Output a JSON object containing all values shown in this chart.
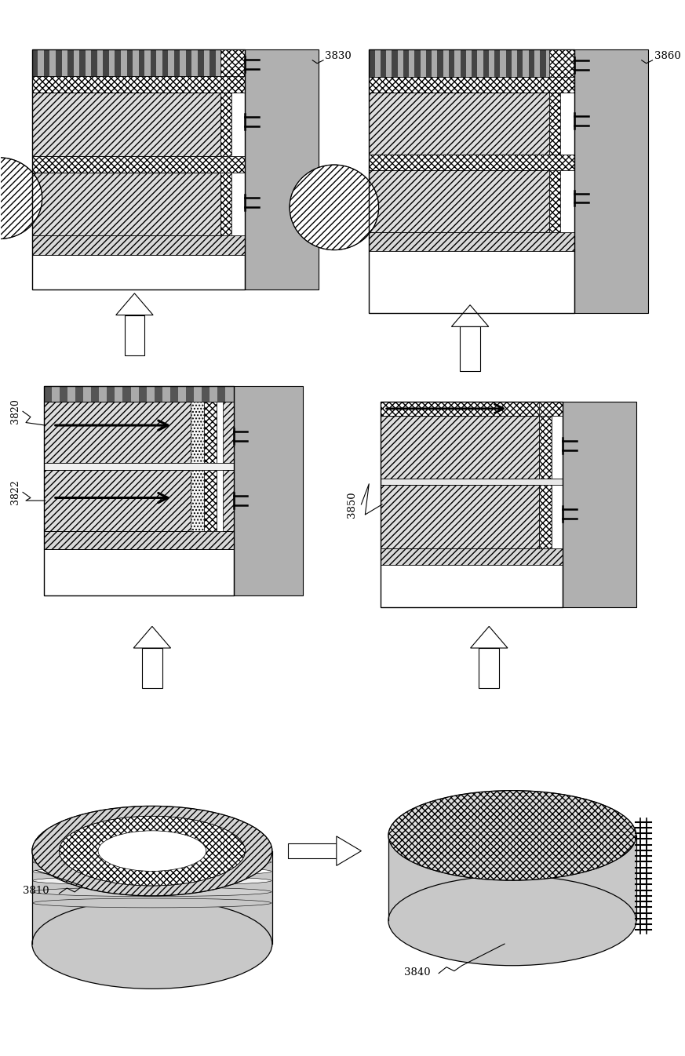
{
  "bg_color": "#ffffff",
  "label_3810": "3810",
  "label_3820": "3820",
  "label_3822": "3822",
  "label_3830": "3830",
  "label_3840": "3840",
  "label_3850": "3850",
  "label_3860": "3860",
  "gray_substrate": "#b0b0b0",
  "gray_medium": "#c8c8c8",
  "gray_light": "#e8e8e8",
  "gray_dark": "#808080"
}
